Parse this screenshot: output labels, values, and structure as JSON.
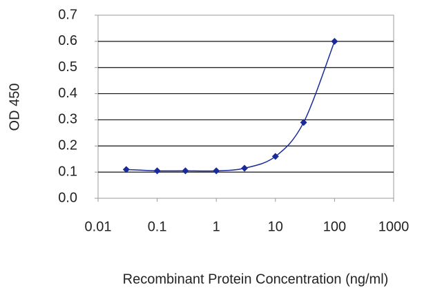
{
  "chart_data": {
    "type": "line",
    "xlabel": "Recombinant Protein Concentration (ng/ml)",
    "ylabel": "OD 450",
    "x": [
      0.03,
      0.1,
      0.3,
      1,
      3,
      10,
      30,
      100
    ],
    "series": [
      {
        "color": "#1a2a9a",
        "values": [
          0.11,
          0.105,
          0.105,
          0.105,
          0.115,
          0.16,
          0.29,
          0.6
        ]
      }
    ],
    "xscale": "log",
    "xlim": [
      0.01,
      1000
    ],
    "xticks": [
      0.01,
      0.1,
      1,
      10,
      100,
      1000
    ],
    "ylim": [
      0,
      0.7
    ],
    "yticks": [
      {
        "value": 0,
        "label": "0.0"
      },
      0.1,
      0.2,
      0.3,
      0.4,
      0.5,
      0.6,
      0.7
    ],
    "grid": true
  }
}
